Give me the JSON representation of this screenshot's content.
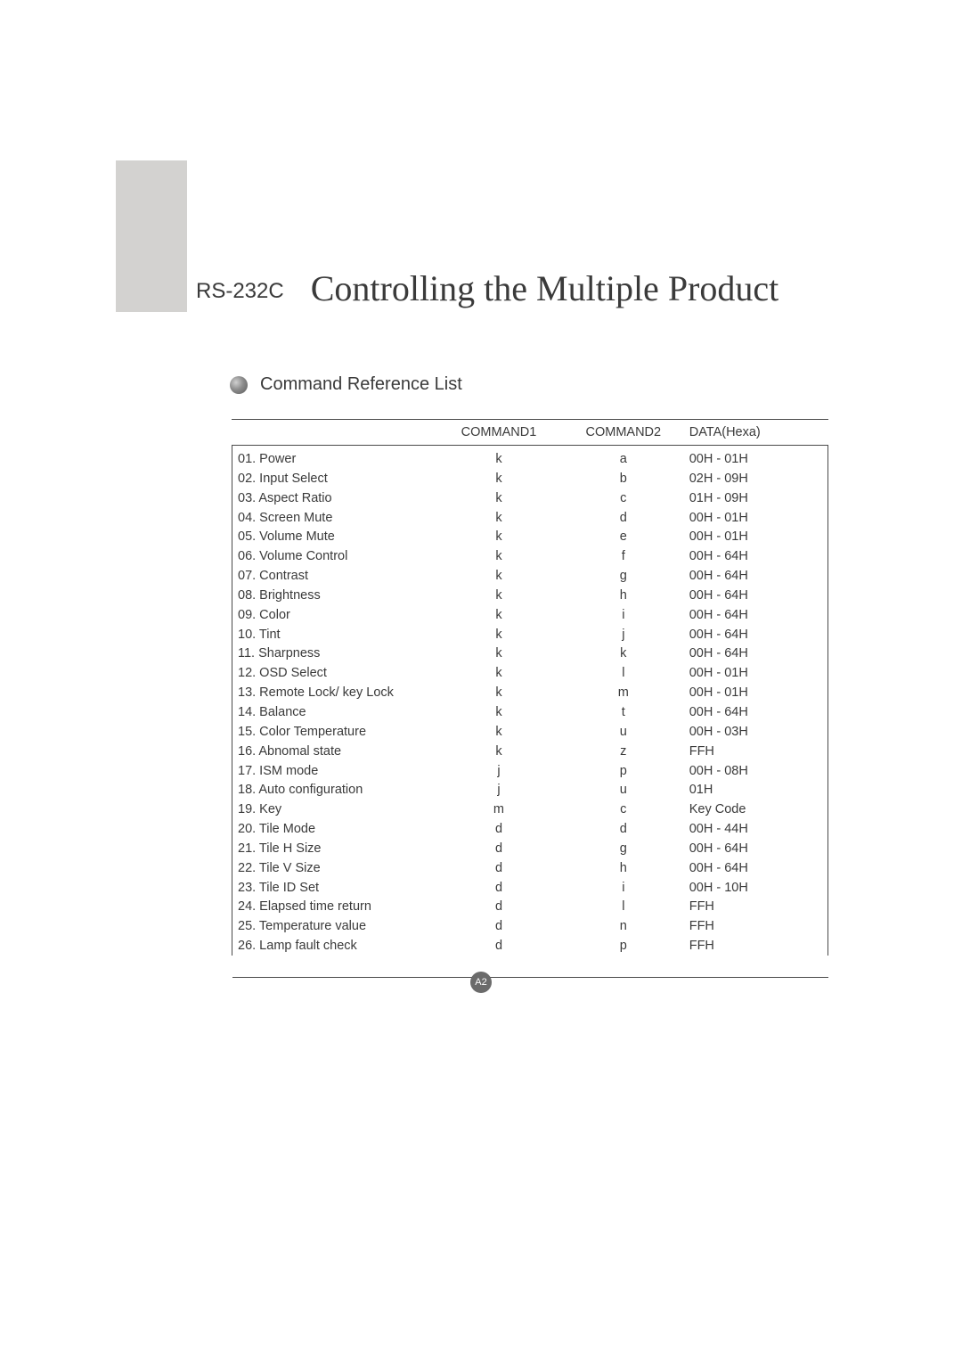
{
  "header": {
    "small_title": "RS-232C",
    "big_title": "Controlling the Multiple Product"
  },
  "section": {
    "title": "Command Reference List"
  },
  "table": {
    "columns": {
      "name": "",
      "c1": "COMMAND1",
      "c2": "COMMAND2",
      "data": "DATA(Hexa)"
    },
    "rows": [
      {
        "name": "01. Power",
        "c1": "k",
        "c2": "a",
        "data": "00H  -  01H"
      },
      {
        "name": "02. Input Select",
        "c1": "k",
        "c2": "b",
        "data": "02H  -  09H"
      },
      {
        "name": "03. Aspect Ratio",
        "c1": "k",
        "c2": "c",
        "data": "01H  -  09H"
      },
      {
        "name": "04. Screen Mute",
        "c1": "k",
        "c2": "d",
        "data": "00H  -  01H"
      },
      {
        "name": "05. Volume Mute",
        "c1": "k",
        "c2": "e",
        "data": "00H  -  01H"
      },
      {
        "name": "06. Volume Control",
        "c1": "k",
        "c2": "f",
        "data": "00H  -  64H"
      },
      {
        "name": "07. Contrast",
        "c1": "k",
        "c2": "g",
        "data": "00H  -  64H"
      },
      {
        "name": "08. Brightness",
        "c1": "k",
        "c2": "h",
        "data": "00H  -  64H"
      },
      {
        "name": "09. Color",
        "c1": "k",
        "c2": "i",
        "data": "00H  -  64H"
      },
      {
        "name": "10. Tint",
        "c1": "k",
        "c2": "j",
        "data": "00H  -  64H"
      },
      {
        "name": "11. Sharpness",
        "c1": "k",
        "c2": "k",
        "data": "00H  -  64H"
      },
      {
        "name": "12. OSD Select",
        "c1": "k",
        "c2": "l",
        "data": "00H  -  01H"
      },
      {
        "name": "13. Remote Lock/ key Lock",
        "c1": "k",
        "c2": "m",
        "data": "00H  -  01H"
      },
      {
        "name": "14. Balance",
        "c1": "k",
        "c2": "t",
        "data": "00H  -  64H"
      },
      {
        "name": "15. Color Temperature",
        "c1": "k",
        "c2": "u",
        "data": "00H  -  03H"
      },
      {
        "name": "16. Abnomal state",
        "c1": "k",
        "c2": "z",
        "data": "FFH"
      },
      {
        "name": "17. ISM mode",
        "c1": "j",
        "c2": "p",
        "data": "00H  -  08H"
      },
      {
        "name": "18. Auto configuration",
        "c1": "j",
        "c2": "u",
        "data": "01H"
      },
      {
        "name": "19. Key",
        "c1": "m",
        "c2": "c",
        "data": "Key Code"
      },
      {
        "name": "20. Tile Mode",
        "c1": "d",
        "c2": "d",
        "data": "00H  -  44H"
      },
      {
        "name": "21. Tile H Size",
        "c1": "d",
        "c2": "g",
        "data": "00H  -  64H"
      },
      {
        "name": "22. Tile V Size",
        "c1": "d",
        "c2": "h",
        "data": "00H  -  64H"
      },
      {
        "name": "23. Tile ID Set",
        "c1": "d",
        "c2": "i",
        "data": "00H  -  10H"
      },
      {
        "name": "24. Elapsed time return",
        "c1": "d",
        "c2": "l",
        "data": "FFH"
      },
      {
        "name": "25. Temperature value",
        "c1": " d",
        "c2": "n",
        "data": "FFH"
      },
      {
        "name": "26. Lamp fault check",
        "c1": "d",
        "c2": "p",
        "data": "FFH"
      }
    ]
  },
  "footer": {
    "page_number": "A2"
  },
  "colors": {
    "text": "#3a3a3a",
    "sidebar": "#d3d2d0",
    "border": "#4a4a4a",
    "badge_bg": "#6b6b6b",
    "badge_text": "#ffffff"
  }
}
